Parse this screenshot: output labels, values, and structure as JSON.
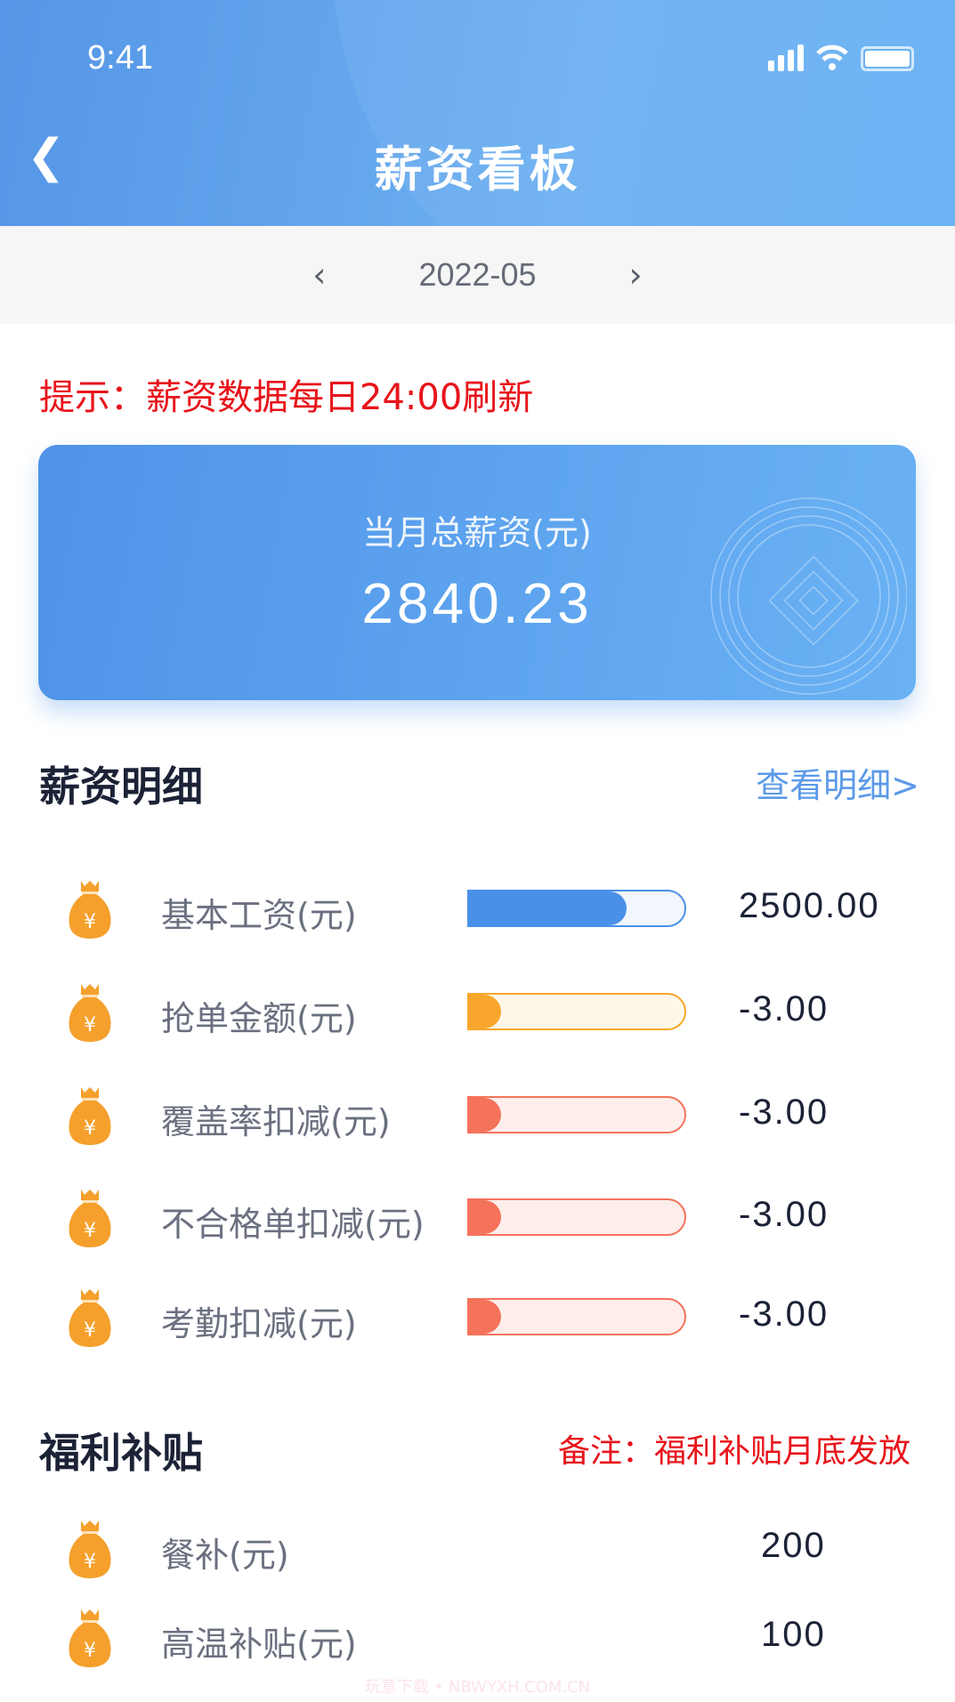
{
  "status_bar": {
    "time": "9:41"
  },
  "nav": {
    "title": "薪资看板",
    "back_icon": "chevron-left-icon"
  },
  "date_picker": {
    "value": "2022-05",
    "prev": "‹",
    "next": "›"
  },
  "tip": "提示：薪资数据每日24:00刷新",
  "summary_card": {
    "label": "当月总薪资(元)",
    "amount": "2840.23"
  },
  "salary_detail": {
    "title": "薪资明细",
    "link": "查看明细>",
    "items": [
      {
        "label": "基本工资(元)",
        "value": "2500.00",
        "fill_percent": 73,
        "color": "#4a90e8",
        "track": "#f2f7fe"
      },
      {
        "label": "抢单金额(元)",
        "value": "-3.00",
        "fill_percent": 15,
        "color": "#f8a72c",
        "track": "#fff8ea"
      },
      {
        "label": "覆盖率扣减(元)",
        "value": "-3.00",
        "fill_percent": 15,
        "color": "#f4735a",
        "track": "#fdeeec"
      },
      {
        "label": "不合格单扣减(元)",
        "value": "-3.00",
        "fill_percent": 15,
        "color": "#f4735a",
        "track": "#fdeeec"
      },
      {
        "label": "考勤扣减(元)",
        "value": "-3.00",
        "fill_percent": 15,
        "color": "#f4735a",
        "track": "#fdeeec"
      }
    ]
  },
  "benefits": {
    "title": "福利补贴",
    "note": "备注：福利补贴月底发放",
    "items": [
      {
        "label": "餐补(元)",
        "value": "200"
      },
      {
        "label": "高温补贴(元)",
        "value": "100"
      }
    ]
  },
  "watermark": "玩意下载 • NBWYXH.COM.CN",
  "colors": {
    "accent": "#5596e6",
    "warning": "#e8141b",
    "icon": "#f5a02c"
  }
}
